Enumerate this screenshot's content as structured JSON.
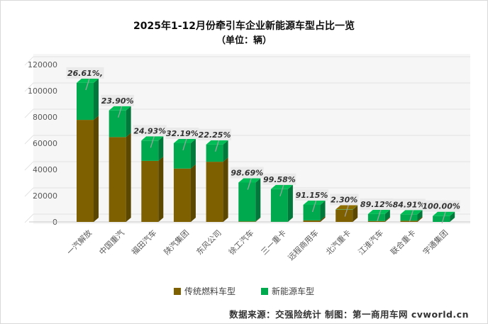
{
  "header": {
    "title": "2025年1-12月份牵引车企业新能源车型占比一览",
    "subtitle": "（单位：辆）"
  },
  "chart_data": {
    "type": "bar",
    "stacked": true,
    "style": "pseudo-3d",
    "title": "2025年1-12月份牵引车企业新能源车型占比一览",
    "subtitle": "（单位：辆）",
    "unit": "辆",
    "categories": [
      "一汽解放",
      "中国重汽",
      "福田汽车",
      "陕汽集团",
      "东风公司",
      "徐工汽车",
      "三一重卡",
      "远程商用车",
      "北汽重卡",
      "江淮汽车",
      "联合重卡",
      "宇通集团"
    ],
    "series": [
      {
        "name": "传统燃料车型",
        "color": "#7E6000",
        "color_side": "#5C4700",
        "color_top": "#8F6E00",
        "values": [
          77793,
          64685,
          46543,
          40686,
          45872,
          393,
          105,
          1150,
          9281,
          653,
          875,
          0
        ]
      },
      {
        "name": "新能源车型",
        "color": "#00A94E",
        "color_side": "#00793A",
        "color_top": "#00BD55",
        "values": [
          28207,
          20315,
          15457,
          19314,
          13128,
          29607,
          24895,
          11850,
          219,
          5347,
          4925,
          4500
        ]
      }
    ],
    "totals_estimated": [
      106000,
      85000,
      62000,
      60000,
      59000,
      30000,
      25000,
      13000,
      9500,
      6000,
      5800,
      4500
    ],
    "percent_labels": [
      "26.61%,",
      "23.90%",
      "24.93%",
      "32.19%",
      "22.25%",
      "98.69%",
      "99.58%",
      "91.15%",
      "2.30%",
      "89.12%",
      "84.91%",
      "100.00%"
    ],
    "percent_label_meaning": "新能源车型占比",
    "ylim": [
      0,
      120000
    ],
    "ytick_step": 20000,
    "yticks": [
      "0",
      "20000",
      "40000",
      "60000",
      "80000",
      "100000",
      "120000"
    ],
    "grid": true,
    "legend_position": "bottom"
  },
  "legend": {
    "items": [
      {
        "label": "传统燃料车型",
        "color": "#7E6000"
      },
      {
        "label": "新能源车型",
        "color": "#00A94E"
      }
    ]
  },
  "footer": {
    "text": "数据来源：交强险统计  制图：第一商用车网 cvworld.cn"
  },
  "colors": {
    "plot_wall": "#F6F6F6",
    "gridline": "#E2E2E2",
    "axis_text": "#595959",
    "label_box": "#EAEAEA",
    "label_text": "#333333",
    "leader_line": "#A3A3A3"
  }
}
